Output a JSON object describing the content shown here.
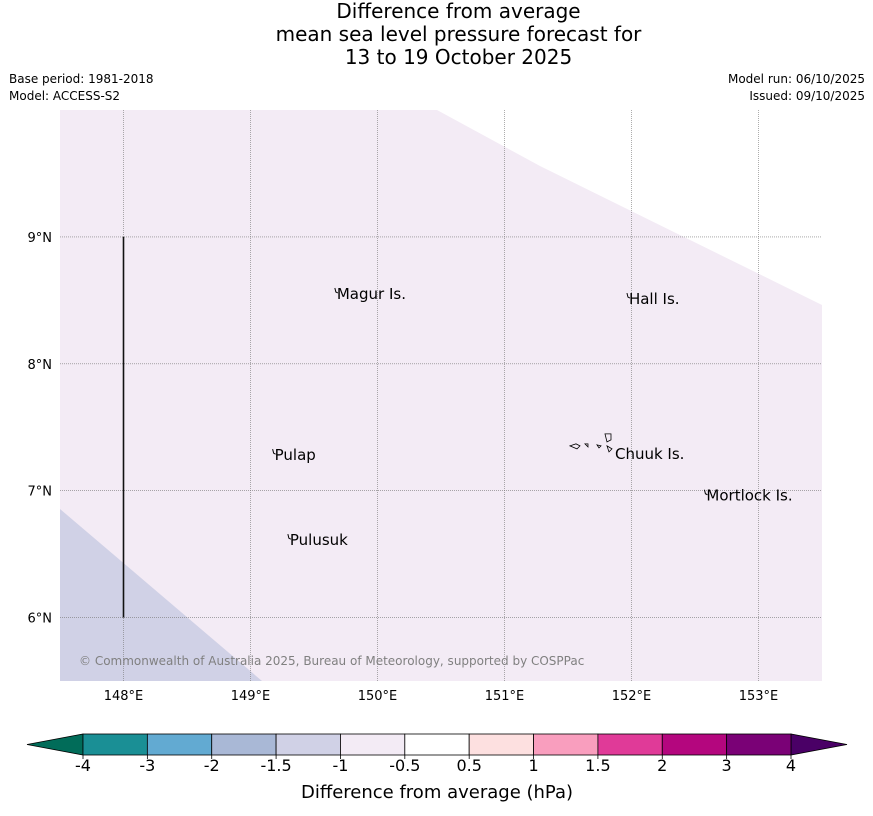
{
  "title": {
    "line1": "Difference from average",
    "line2": "mean sea level pressure forecast for",
    "line3": "13 to 19 October 2025"
  },
  "meta": {
    "base_period": "Base period: 1981-2018",
    "model": "Model: ACCESS-S2",
    "model_run": "Model run: 06/10/2025",
    "issued": "Issued: 09/10/2025"
  },
  "map": {
    "lon_range": [
      147.5,
      153.5
    ],
    "lat_range": [
      5.5,
      10.0
    ],
    "x_ticks": [
      148,
      149,
      150,
      151,
      152,
      153
    ],
    "x_tick_labels": [
      "148°E",
      "149°E",
      "150°E",
      "151°E",
      "152°E",
      "153°E"
    ],
    "y_ticks": [
      6,
      7,
      8,
      9
    ],
    "y_tick_labels": [
      "6°N",
      "7°N",
      "8°N",
      "9°N"
    ],
    "places": [
      {
        "name": "Magur Is.",
        "lon": 149.68,
        "lat": 8.55
      },
      {
        "name": "Hall Is.",
        "lon": 151.98,
        "lat": 8.51
      },
      {
        "name": "Pulap",
        "lon": 149.19,
        "lat": 7.28
      },
      {
        "name": "Chuuk Is.",
        "lon": 151.87,
        "lat": 7.29
      },
      {
        "name": "Mortlock Is.",
        "lon": 152.59,
        "lat": 6.96
      },
      {
        "name": "Pulusuk",
        "lon": 149.31,
        "lat": 6.61
      }
    ],
    "meridian_line": {
      "lon": 148,
      "lat_from": 6,
      "lat_to": 9
    },
    "copyright": "© Commonwealth of Australia 2025, Bureau of Meteorology, supported by COSPPac"
  },
  "colorbar": {
    "title": "Difference from average (hPa)",
    "labels": [
      "-4",
      "-3",
      "-2",
      "-1.5",
      "-1",
      "-0.5",
      "0.5",
      "1",
      "1.5",
      "2",
      "3",
      "4"
    ],
    "colors": [
      "#1a8f95",
      "#62aad2",
      "#a9b8d6",
      "#d0d1e6",
      "#f3ebf5",
      "#ffffff",
      "#fde0e0",
      "#f99ebe",
      "#e03a98",
      "#b4067e",
      "#7a0176"
    ],
    "under_color": "#016c59",
    "over_color": "#4a0066",
    "region_colors": {
      "light_purple": "#f3ebf5",
      "lavender": "#d0d1e6"
    }
  }
}
